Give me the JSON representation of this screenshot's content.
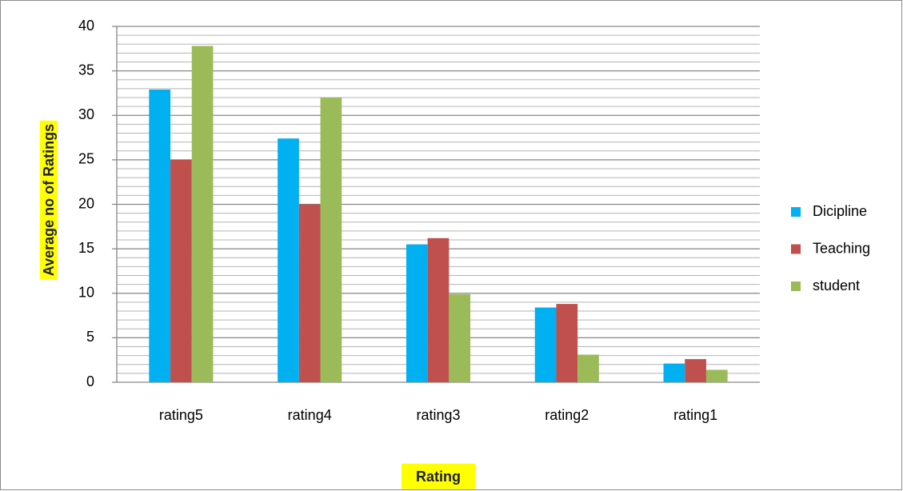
{
  "chart_data": {
    "type": "bar",
    "x_label": "Rating",
    "y_label": "Average no of Ratings",
    "categories": [
      "rating5",
      "rating4",
      "rating3",
      "rating2",
      "rating1"
    ],
    "series": [
      {
        "name": "Dicipline",
        "color": "#00b0f0",
        "values": [
          32.9,
          27.4,
          15.5,
          8.4,
          2.1
        ]
      },
      {
        "name": "Teaching",
        "color": "#c0504d",
        "values": [
          25,
          20,
          16.2,
          8.8,
          2.6
        ]
      },
      {
        "name": "student",
        "color": "#9bbb59",
        "values": [
          37.8,
          32,
          9.9,
          3.1,
          1.4
        ]
      }
    ],
    "ylim": [
      0,
      40
    ],
    "yticks": [
      0,
      5,
      10,
      15,
      20,
      25,
      30,
      35,
      40
    ],
    "grid": true,
    "legend": "right"
  }
}
